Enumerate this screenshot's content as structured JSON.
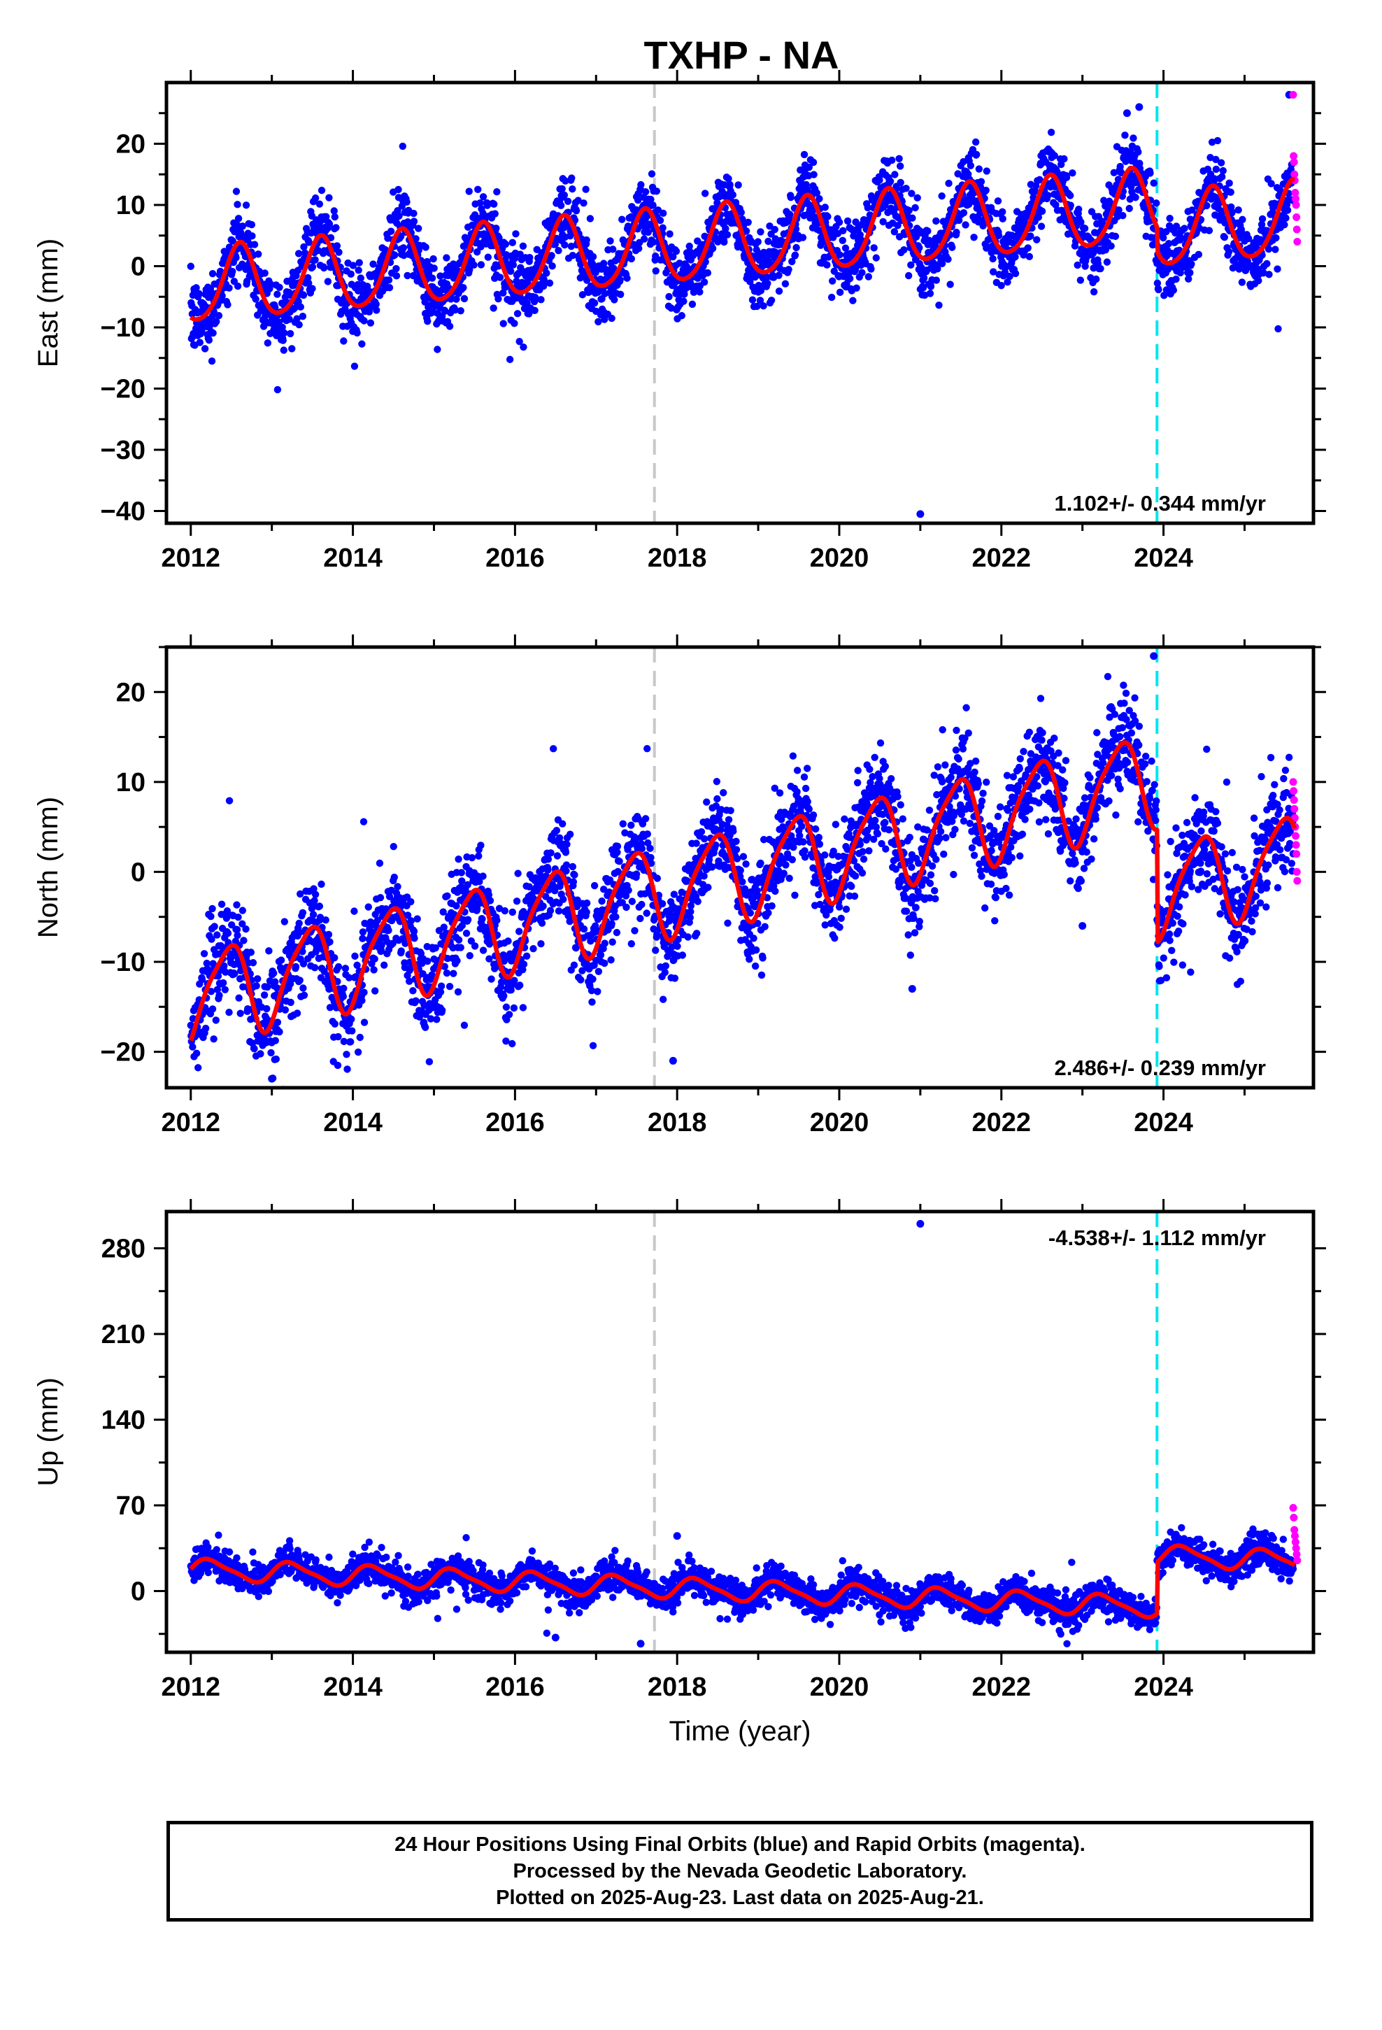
{
  "figure": {
    "title": "TXHP - NA",
    "xlabel": "Time (year)",
    "caption": [
      "24 Hour Positions Using Final Orbits (blue) and Rapid Orbits (magenta).",
      "Processed by the Nevada Geodetic Laboratory.",
      "Plotted on 2025-Aug-23. Last data on 2025-Aug-21."
    ]
  },
  "colors": {
    "final_orbits": "#0000ff",
    "rapid_orbits": "#ff00ff",
    "model_fit": "#ff0000",
    "equipment_change": "#c8c8c8",
    "offset_event": "#00e5ee"
  },
  "chart_data": [
    {
      "type": "scatter",
      "ylabel": "East (mm)",
      "xlim": [
        2011.7,
        2025.85
      ],
      "ylim": [
        -42,
        30
      ],
      "x_ticks": [
        2012,
        2014,
        2016,
        2018,
        2020,
        2022,
        2024
      ],
      "y_ticks": [
        -40,
        -30,
        -20,
        -10,
        0,
        10,
        20
      ],
      "rate_label": "1.102+/- 0.344 mm/yr",
      "rate_position": "bottom-right",
      "vertical_lines": [
        {
          "x": 2017.72,
          "kind": "equipment_change"
        },
        {
          "x": 2023.92,
          "kind": "offset_event"
        }
      ],
      "model": {
        "intercept": -3.5,
        "rate": 1.1,
        "annual_amp": 6.0,
        "annual_phase": 0.35,
        "semiannual_amp": 0.8,
        "offset_at": 2023.92,
        "offset": -4.0,
        "scatter": 3.0
      },
      "outliers": [
        [
          2021.0,
          -40.5
        ],
        [
          2025.55,
          28.0
        ],
        [
          2023.7,
          26.0
        ],
        [
          2023.55,
          25.0
        ]
      ],
      "rapid_range": [
        2025.6,
        2025.65
      ],
      "rapid_values": [
        28,
        18,
        17,
        15,
        14,
        12,
        11,
        10,
        8,
        6,
        4
      ]
    },
    {
      "type": "scatter",
      "ylabel": "North (mm)",
      "xlim": [
        2011.7,
        2025.85
      ],
      "ylim": [
        -24,
        25
      ],
      "x_ticks": [
        2012,
        2014,
        2016,
        2018,
        2020,
        2022,
        2024
      ],
      "y_ticks": [
        -20,
        -10,
        0,
        10,
        20
      ],
      "rate_label": "2.486+/- 0.239 mm/yr",
      "rate_position": "bottom-right",
      "vertical_lines": [
        {
          "x": 2017.72,
          "kind": "equipment_change"
        },
        {
          "x": 2023.92,
          "kind": "offset_event"
        }
      ],
      "model": {
        "intercept": -14.0,
        "rate": 2.05,
        "annual_amp": 5.0,
        "annual_phase": 0.2,
        "semiannual_amp": 1.0,
        "offset_at": 2023.92,
        "offset": -12.5,
        "scatter": 2.8
      },
      "outliers": [
        [
          2023.88,
          24.0
        ],
        [
          2017.95,
          -21.0
        ],
        [
          2020.9,
          -13.0
        ],
        [
          2013.0,
          -23.0
        ],
        [
          2023.0,
          -6.0
        ]
      ],
      "rapid_range": [
        2025.6,
        2025.65
      ],
      "rapid_values": [
        10,
        9,
        8,
        7,
        6,
        5,
        4,
        3,
        2,
        0,
        -1
      ]
    },
    {
      "type": "scatter",
      "ylabel": "Up (mm)",
      "xlabel": "Time (year)",
      "xlim": [
        2011.7,
        2025.85
      ],
      "ylim": [
        -50,
        310
      ],
      "x_ticks": [
        2012,
        2014,
        2016,
        2018,
        2020,
        2022,
        2024
      ],
      "y_ticks": [
        0,
        70,
        140,
        210,
        280
      ],
      "rate_label": "-4.538+/- 1.112 mm/yr",
      "rate_position": "top-right",
      "vertical_lines": [
        {
          "x": 2017.72,
          "kind": "equipment_change"
        },
        {
          "x": 2023.92,
          "kind": "offset_event"
        }
      ],
      "model": {
        "intercept": 18.0,
        "rate": -2.6,
        "annual_amp": 8.0,
        "annual_phase": 0.0,
        "semiannual_amp": 2.0,
        "offset_at": 2023.92,
        "offset": 42.0,
        "scatter": 6.5
      },
      "outliers": [
        [
          2021.0,
          300.0
        ],
        [
          2018.0,
          45.0
        ],
        [
          2017.55,
          -43.0
        ],
        [
          2016.5,
          -38.0
        ]
      ],
      "rapid_range": [
        2025.6,
        2025.65
      ],
      "rapid_values": [
        68,
        60,
        50,
        45,
        40,
        35,
        30,
        25
      ]
    }
  ]
}
